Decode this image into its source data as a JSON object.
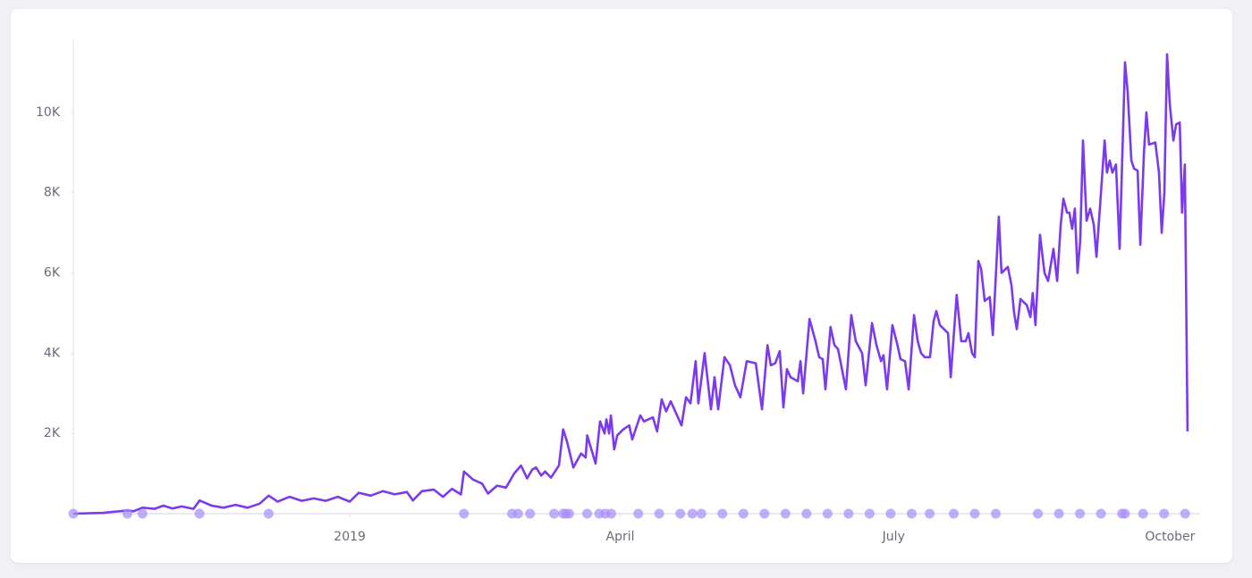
{
  "chart_data": {
    "type": "line",
    "color": "#7c3aed",
    "event_color": "#a78bfa",
    "xlim": [
      0,
      375
    ],
    "xticks": [
      {
        "value": 92,
        "label": "2019"
      },
      {
        "value": 182,
        "label": "April"
      },
      {
        "value": 273,
        "label": "July"
      },
      {
        "value": 365,
        "label": "October"
      }
    ],
    "ylim": [
      0,
      11800
    ],
    "yticks": [
      {
        "value": 2000,
        "label": "2K"
      },
      {
        "value": 4000,
        "label": "4K"
      },
      {
        "value": 6000,
        "label": "6K"
      },
      {
        "value": 8000,
        "label": "8K"
      },
      {
        "value": 10000,
        "label": "10K"
      }
    ],
    "x": [
      0,
      10,
      18,
      20,
      23,
      27,
      30,
      33,
      36,
      40,
      42,
      46,
      50,
      54,
      58,
      62,
      65,
      68,
      72,
      76,
      80,
      84,
      88,
      92,
      95,
      99,
      103,
      107,
      111,
      113,
      116,
      120,
      123,
      126,
      129,
      130,
      133,
      136,
      138,
      141,
      144,
      146.7,
      149,
      151,
      152.7,
      154,
      155.7,
      157,
      159,
      161.6,
      163,
      164.3,
      166.4,
      169,
      170.5,
      171,
      173.8,
      175.3,
      176.8,
      177.4,
      178.3,
      178.9,
      180,
      181,
      183,
      185,
      186,
      188.7,
      189.9,
      192.9,
      194.3,
      195.8,
      197.3,
      198.8,
      202.4,
      203.9,
      205.4,
      207.1,
      208,
      210.1,
      212.2,
      213.4,
      214.6,
      216.7,
      218.5,
      220.2,
      222,
      224.1,
      227.1,
      229.2,
      231,
      232.1,
      233.6,
      235.1,
      236.3,
      237.5,
      238.7,
      241.1,
      242,
      242.9,
      245,
      247,
      248.2,
      249.4,
      250.3,
      252,
      253.3,
      254.5,
      257.1,
      258.9,
      260.4,
      262.5,
      263.7,
      265.8,
      267.3,
      268.8,
      269.6,
      270.8,
      272.6,
      274.1,
      275.3,
      276.8,
      278,
      279.8,
      281,
      282.1,
      283.3,
      285.1,
      286.3,
      287.2,
      288.4,
      291.1,
      292,
      294,
      295.5,
      297,
      297.9,
      299.1,
      300,
      301.2,
      302.1,
      303.3,
      305,
      306,
      308,
      308.9,
      311,
      312.2,
      313.1,
      314,
      315.2,
      317.3,
      318.5,
      319.3,
      320.2,
      321.7,
      323.2,
      324.4,
      326.2,
      327.4,
      328.6,
      329.5,
      330.7,
      331.5,
      332.4,
      333.3,
      334.2,
      335.1,
      336,
      337.2,
      338.4,
      339.6,
      340.5,
      343.2,
      344,
      344.9,
      345.8,
      347,
      348.2,
      350,
      350.9,
      352.1,
      353,
      354.2,
      355.1,
      356.3,
      357.1,
      358,
      360.1,
      361.3,
      362.2,
      363.1,
      364,
      364.9,
      366.1,
      367,
      368.2,
      369,
      369.9,
      370.8
    ],
    "values": [
      0,
      20,
      80,
      60,
      150,
      120,
      200,
      130,
      180,
      120,
      330,
      200,
      150,
      220,
      150,
      250,
      450,
      300,
      420,
      320,
      380,
      320,
      420,
      300,
      520,
      450,
      560,
      480,
      540,
      330,
      560,
      600,
      420,
      620,
      480,
      1050,
      850,
      750,
      500,
      700,
      650,
      1000,
      1200,
      880,
      1100,
      1150,
      950,
      1050,
      900,
      1200,
      2100,
      1800,
      1150,
      1500,
      1400,
      1950,
      1250,
      2300,
      2000,
      2350,
      2000,
      2450,
      1600,
      1950,
      2100,
      2200,
      1850,
      2450,
      2300,
      2400,
      2050,
      2850,
      2550,
      2800,
      2200,
      2900,
      2750,
      3800,
      2750,
      4000,
      2600,
      3400,
      2600,
      3900,
      3700,
      3200,
      2900,
      3800,
      3750,
      2600,
      4200,
      3700,
      3750,
      4050,
      2650,
      3600,
      3400,
      3300,
      3800,
      3000,
      4850,
      4300,
      3900,
      3850,
      3100,
      4650,
      4200,
      4100,
      3100,
      4950,
      4300,
      4000,
      3200,
      4750,
      4200,
      3800,
      3950,
      3100,
      4700,
      4250,
      3850,
      3800,
      3100,
      4950,
      4300,
      4000,
      3900,
      3900,
      4800,
      5050,
      4700,
      4500,
      3400,
      5450,
      4300,
      4300,
      4500,
      4000,
      3900,
      6300,
      6100,
      5300,
      5400,
      4450,
      7400,
      6000,
      6150,
      5700,
      5000,
      4600,
      5350,
      5200,
      4900,
      5500,
      4700,
      6950,
      6000,
      5800,
      6600,
      5800,
      7200,
      7850,
      7500,
      7500,
      7100,
      7600,
      6000,
      6800,
      9300,
      7300,
      7600,
      7200,
      6400,
      9300,
      8500,
      8800,
      8500,
      8700,
      6600,
      11250,
      10500,
      8800,
      8600,
      8550,
      6700,
      9000,
      10000,
      9200,
      9250,
      8500,
      7000,
      8000,
      11450,
      10200,
      9300,
      9700,
      9750,
      7500,
      8700,
      2050
    ],
    "events": [
      0,
      18,
      23,
      42,
      65,
      130,
      146,
      148,
      152,
      160,
      163,
      164,
      165,
      171,
      175,
      177,
      179,
      188,
      195,
      202,
      206,
      209,
      216,
      223,
      230,
      237,
      244,
      251,
      258,
      265,
      272,
      279,
      285,
      293,
      300,
      307,
      321,
      328,
      335,
      342,
      349,
      350,
      356,
      363,
      370
    ]
  }
}
